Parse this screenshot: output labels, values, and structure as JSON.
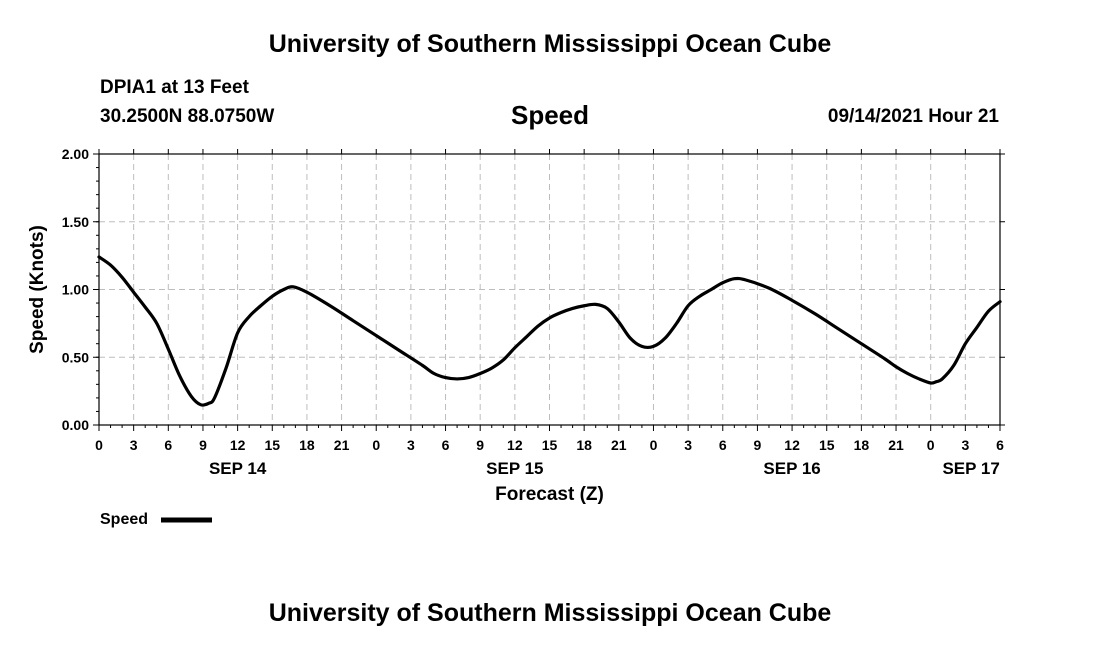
{
  "header": {
    "title": "University of Southern Mississippi Ocean Cube",
    "station": "DPIA1 at 13 Feet",
    "coordinates": "30.2500N  88.0750W",
    "datetime": "09/14/2021 Hour 21"
  },
  "footer": {
    "title": "University of Southern Mississippi Ocean Cube"
  },
  "chart_data": {
    "type": "line",
    "title": "Speed",
    "xlabel": "Forecast (Z)",
    "ylabel": "Speed (Knots)",
    "xlim": [
      0,
      78
    ],
    "ylim": [
      0,
      2.0
    ],
    "y_ticks": [
      "0.00",
      "0.50",
      "1.00",
      "1.50",
      "2.00"
    ],
    "y_tick_values": [
      0,
      0.5,
      1.0,
      1.5,
      2.0
    ],
    "x_tick_hours": [
      0,
      3,
      6,
      9,
      12,
      15,
      18,
      21,
      24,
      27,
      30,
      33,
      36,
      39,
      42,
      45,
      48,
      51,
      54,
      57,
      60,
      63,
      66,
      69,
      72,
      75,
      78
    ],
    "x_tick_labels": [
      "0",
      "3",
      "6",
      "9",
      "12",
      "15",
      "18",
      "21",
      "0",
      "3",
      "6",
      "9",
      "12",
      "15",
      "18",
      "21",
      "0",
      "3",
      "6",
      "9",
      "12",
      "15",
      "18",
      "21",
      "0",
      "3",
      "6"
    ],
    "date_labels": [
      {
        "label": "SEP 14",
        "hour": 12
      },
      {
        "label": "SEP 15",
        "hour": 36
      },
      {
        "label": "SEP 16",
        "hour": 60
      },
      {
        "label": "SEP 17",
        "hour": 75.5
      }
    ],
    "grid": true,
    "legend_position": "bottom-left",
    "series": [
      {
        "name": "Speed",
        "color": "#000000",
        "points": [
          [
            0,
            1.24
          ],
          [
            1,
            1.18
          ],
          [
            2,
            1.09
          ],
          [
            3,
            0.98
          ],
          [
            4,
            0.87
          ],
          [
            5,
            0.75
          ],
          [
            6,
            0.56
          ],
          [
            7,
            0.36
          ],
          [
            8,
            0.21
          ],
          [
            8.8,
            0.15
          ],
          [
            9.5,
            0.16
          ],
          [
            10,
            0.2
          ],
          [
            11,
            0.42
          ],
          [
            12,
            0.68
          ],
          [
            13,
            0.8
          ],
          [
            14,
            0.88
          ],
          [
            15,
            0.95
          ],
          [
            16,
            1.0
          ],
          [
            16.8,
            1.02
          ],
          [
            18,
            0.98
          ],
          [
            20,
            0.88
          ],
          [
            22,
            0.77
          ],
          [
            24,
            0.66
          ],
          [
            26,
            0.55
          ],
          [
            28,
            0.44
          ],
          [
            29,
            0.38
          ],
          [
            30,
            0.35
          ],
          [
            31,
            0.34
          ],
          [
            32,
            0.35
          ],
          [
            33,
            0.38
          ],
          [
            34,
            0.42
          ],
          [
            35,
            0.48
          ],
          [
            36,
            0.57
          ],
          [
            37,
            0.65
          ],
          [
            38,
            0.73
          ],
          [
            39,
            0.79
          ],
          [
            40,
            0.83
          ],
          [
            41,
            0.86
          ],
          [
            42,
            0.88
          ],
          [
            43,
            0.89
          ],
          [
            44,
            0.86
          ],
          [
            45,
            0.76
          ],
          [
            46,
            0.64
          ],
          [
            47,
            0.58
          ],
          [
            48,
            0.58
          ],
          [
            49,
            0.64
          ],
          [
            50,
            0.75
          ],
          [
            51,
            0.88
          ],
          [
            52,
            0.95
          ],
          [
            53,
            1.0
          ],
          [
            54,
            1.05
          ],
          [
            55,
            1.08
          ],
          [
            56,
            1.07
          ],
          [
            58,
            1.01
          ],
          [
            60,
            0.92
          ],
          [
            62,
            0.82
          ],
          [
            64,
            0.71
          ],
          [
            66,
            0.6
          ],
          [
            68,
            0.49
          ],
          [
            69,
            0.43
          ],
          [
            70,
            0.38
          ],
          [
            71,
            0.34
          ],
          [
            72,
            0.31
          ],
          [
            72.5,
            0.32
          ],
          [
            73,
            0.34
          ],
          [
            74,
            0.44
          ],
          [
            75,
            0.6
          ],
          [
            76,
            0.72
          ],
          [
            77,
            0.84
          ],
          [
            78,
            0.91
          ]
        ]
      }
    ]
  },
  "legend": {
    "label": "Speed"
  }
}
